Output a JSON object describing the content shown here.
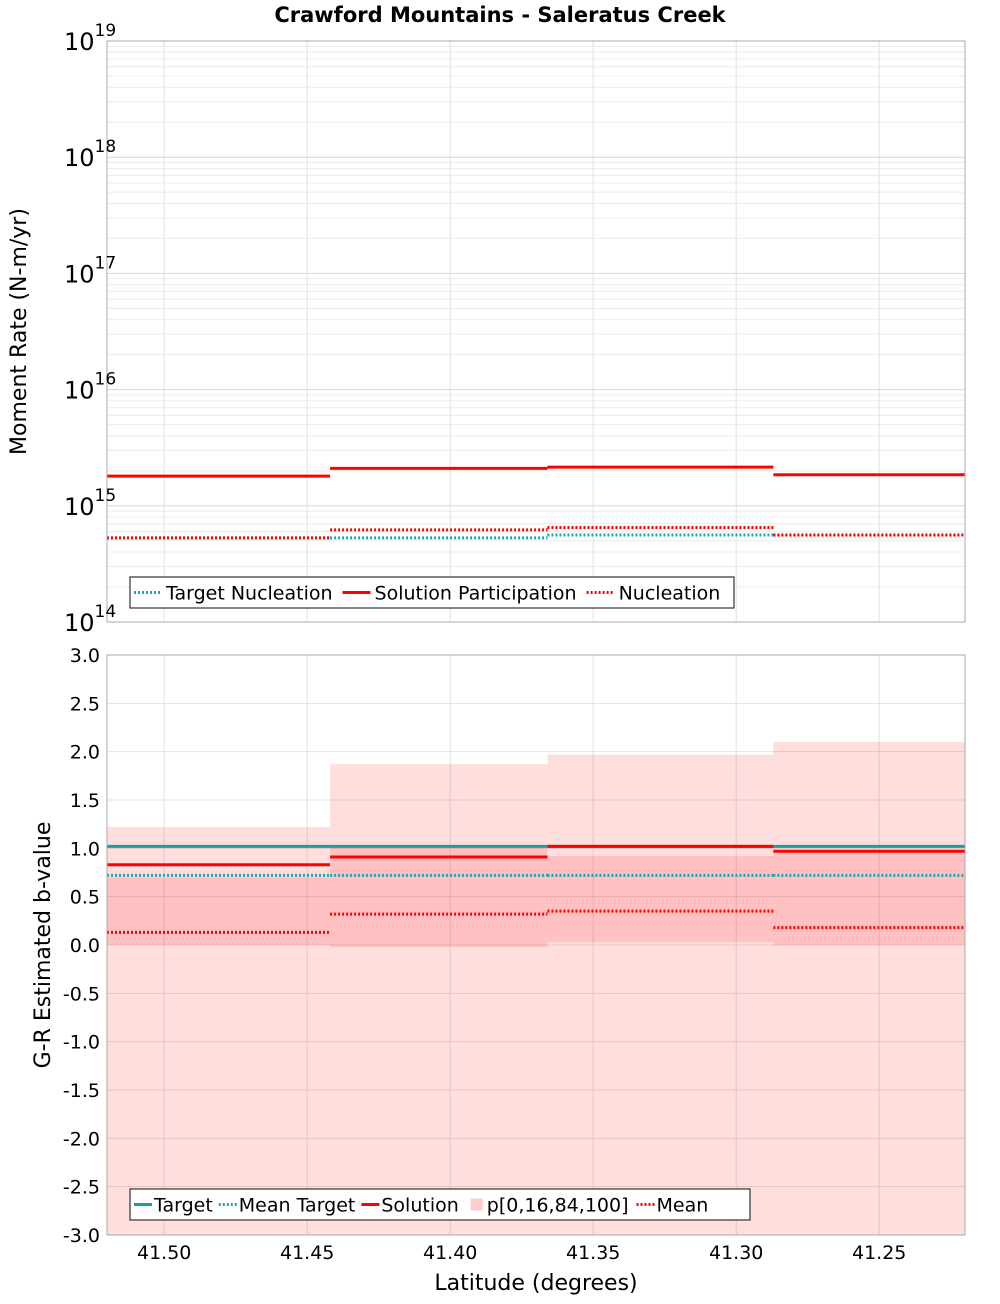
{
  "title": "Crawford Mountains - Saleratus Creek",
  "chart_data": [
    {
      "type": "line",
      "panel": "top",
      "ylabel": "Moment Rate (N-m/yr)",
      "yscale": "log",
      "ylim": [
        100000000000000.0,
        1e+19
      ],
      "xlim": [
        41.52,
        41.22
      ],
      "x_reversed": true,
      "ytick_labels": [
        {
          "value": 100000000000000.0,
          "base": "10",
          "exp": "14"
        },
        {
          "value": 1000000000000000.0,
          "base": "10",
          "exp": "15"
        },
        {
          "value": 1e+16,
          "base": "10",
          "exp": "16"
        },
        {
          "value": 1e+17,
          "base": "10",
          "exp": "17"
        },
        {
          "value": 1e+18,
          "base": "10",
          "exp": "18"
        },
        {
          "value": 1e+19,
          "base": "10",
          "exp": "19"
        }
      ],
      "grid": true,
      "legend_position": "bottom-left",
      "series": [
        {
          "name": "Target Nucleation",
          "style": "dotted",
          "color": "#1aa7b5",
          "segments": [
            {
              "x": [
                41.52,
                41.442
              ],
              "y": 530000000000000.0
            },
            {
              "x": [
                41.442,
                41.366
              ],
              "y": 530000000000000.0
            },
            {
              "x": [
                41.366,
                41.287
              ],
              "y": 560000000000000.0
            },
            {
              "x": [
                41.287,
                41.22
              ],
              "y": 560000000000000.0
            }
          ]
        },
        {
          "name": "Solution Participation",
          "style": "solid",
          "color": "#ff0000",
          "segments": [
            {
              "x": [
                41.52,
                41.442
              ],
              "y": 1800000000000000.0
            },
            {
              "x": [
                41.442,
                41.366
              ],
              "y": 2100000000000000.0
            },
            {
              "x": [
                41.366,
                41.287
              ],
              "y": 2150000000000000.0
            },
            {
              "x": [
                41.287,
                41.22
              ],
              "y": 1850000000000000.0
            }
          ]
        },
        {
          "name": "Nucleation",
          "style": "dotted",
          "color": "#ff0000",
          "segments": [
            {
              "x": [
                41.52,
                41.442
              ],
              "y": 530000000000000.0
            },
            {
              "x": [
                41.442,
                41.366
              ],
              "y": 620000000000000.0
            },
            {
              "x": [
                41.366,
                41.287
              ],
              "y": 650000000000000.0
            },
            {
              "x": [
                41.287,
                41.22
              ],
              "y": 560000000000000.0
            }
          ]
        }
      ]
    },
    {
      "type": "line",
      "panel": "bottom",
      "xlabel": "Latitude (degrees)",
      "ylabel": "G-R Estimated b-value",
      "ylim": [
        -3.0,
        3.0
      ],
      "xlim": [
        41.52,
        41.22
      ],
      "x_reversed": true,
      "yticks": [
        "3.0",
        "2.5",
        "2.0",
        "1.5",
        "1.0",
        "0.5",
        "0.0",
        "-0.5",
        "-1.0",
        "-1.5",
        "-2.0",
        "-2.5",
        "-3.0"
      ],
      "xticks": [
        "41.50",
        "41.45",
        "41.40",
        "41.35",
        "41.30",
        "41.25"
      ],
      "grid": true,
      "legend_position": "bottom-left",
      "bands": {
        "name": "p[0,16,84,100]",
        "color": "#ff0000",
        "segments": [
          {
            "x": [
              41.52,
              41.442
            ],
            "p0": -3.0,
            "p16": 0.0,
            "p84": 0.7,
            "p100": 1.22
          },
          {
            "x": [
              41.442,
              41.366
            ],
            "p0": -3.0,
            "p16": -0.02,
            "p84": 1.02,
            "p100": 1.87
          },
          {
            "x": [
              41.366,
              41.287
            ],
            "p0": -3.0,
            "p16": 0.03,
            "p84": 0.92,
            "p100": 1.97
          },
          {
            "x": [
              41.287,
              41.22
            ],
            "p0": -3.0,
            "p16": 0.0,
            "p84": 0.95,
            "p100": 2.1
          }
        ]
      },
      "series": [
        {
          "name": "Target",
          "style": "solid",
          "color": "#1a9e9e",
          "segments": [
            {
              "x": [
                41.52,
                41.442
              ],
              "y": 1.02
            },
            {
              "x": [
                41.442,
                41.366
              ],
              "y": 1.02
            },
            {
              "x": [
                41.366,
                41.287
              ],
              "y": 1.02
            },
            {
              "x": [
                41.287,
                41.22
              ],
              "y": 1.02
            }
          ]
        },
        {
          "name": "Mean Target",
          "style": "dotted",
          "color": "#1aa7b5",
          "segments": [
            {
              "x": [
                41.52,
                41.442
              ],
              "y": 0.72
            },
            {
              "x": [
                41.442,
                41.366
              ],
              "y": 0.72
            },
            {
              "x": [
                41.366,
                41.287
              ],
              "y": 0.72
            },
            {
              "x": [
                41.287,
                41.22
              ],
              "y": 0.72
            }
          ]
        },
        {
          "name": "Solution",
          "style": "solid",
          "color": "#ff0000",
          "segments": [
            {
              "x": [
                41.52,
                41.442
              ],
              "y": 0.83
            },
            {
              "x": [
                41.442,
                41.366
              ],
              "y": 0.91
            },
            {
              "x": [
                41.366,
                41.287
              ],
              "y": 1.02
            },
            {
              "x": [
                41.287,
                41.22
              ],
              "y": 0.97
            }
          ]
        },
        {
          "name": "Mean",
          "style": "dotted",
          "color": "#ff0000",
          "segments": [
            {
              "x": [
                41.52,
                41.442
              ],
              "y": 0.13
            },
            {
              "x": [
                41.442,
                41.366
              ],
              "y": 0.32
            },
            {
              "x": [
                41.366,
                41.287
              ],
              "y": 0.35
            },
            {
              "x": [
                41.287,
                41.22
              ],
              "y": 0.18
            }
          ]
        }
      ],
      "legend_order": [
        "Target",
        "Mean Target",
        "Solution",
        "p[0,16,84,100]",
        "Mean"
      ]
    }
  ]
}
